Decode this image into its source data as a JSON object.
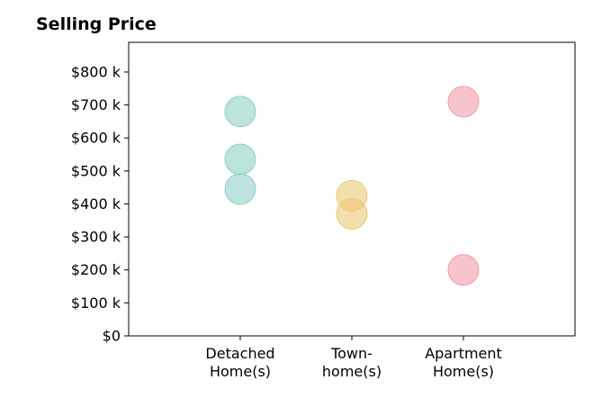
{
  "chart_data": {
    "type": "scatter",
    "title": "Selling Price",
    "categories": [
      "Detached\nHome(s)",
      "Town-\nhome(s)",
      "Apartment\nHome(s)"
    ],
    "ytick_labels": [
      "$0",
      "$100 k",
      "$200 k",
      "$300 k",
      "$400 k",
      "$500 k",
      "$600 k",
      "$700 k",
      "$800 k"
    ],
    "ytick_values": [
      0,
      100000,
      200000,
      300000,
      400000,
      500000,
      600000,
      700000,
      800000
    ],
    "ylim": [
      0,
      890000
    ],
    "xlim": [
      -1,
      3
    ],
    "grid": false,
    "series": [
      {
        "category": "Detached\nHome(s)",
        "values": [
          680000,
          535000,
          445000
        ],
        "color": "#8fd0c6"
      },
      {
        "category": "Town-\nhome(s)",
        "values": [
          425000,
          370000
        ],
        "color": "#ebc978"
      },
      {
        "category": "Apartment\nHome(s)",
        "values": [
          710000,
          200000
        ],
        "color": "#f29da8"
      }
    ]
  }
}
